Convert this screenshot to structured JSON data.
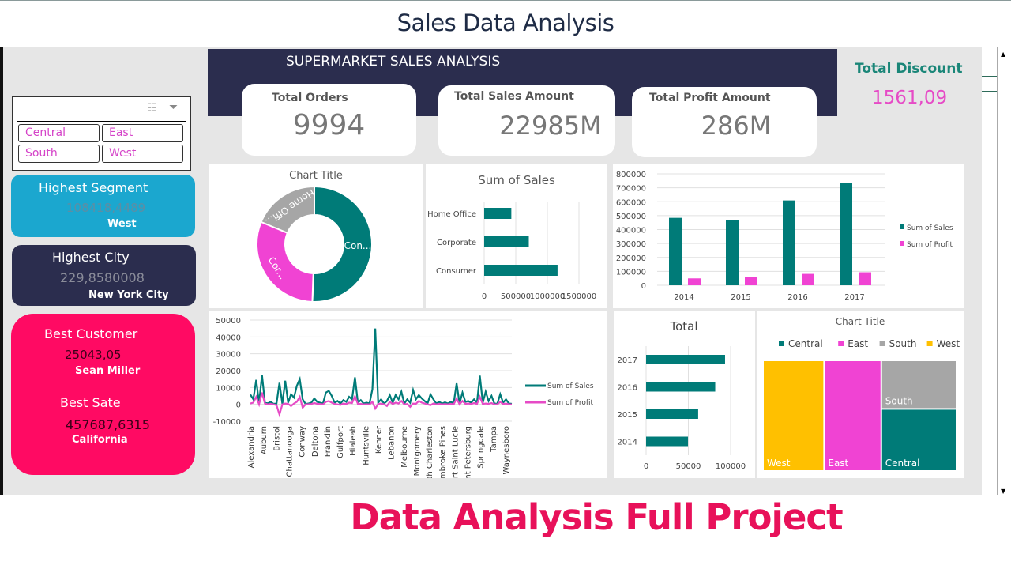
{
  "header": {
    "title": "Sales Data Analysis"
  },
  "footer": {
    "title": "Data Analysis Full Project"
  },
  "dashboard": {
    "banner_title": "SUPERMARKET SALES ANALYSIS",
    "cards": [
      {
        "label": "Total Orders",
        "value": "9994"
      },
      {
        "label": "Total Sales Amount",
        "value": "22985M"
      },
      {
        "label": "Total Profit Amount",
        "value": "286M"
      }
    ],
    "total_discount": {
      "label": "Total Discount",
      "value": "1561,09"
    },
    "region_filter": {
      "items": [
        "Central",
        "East",
        "South",
        "West"
      ],
      "icons": [
        "multi-select-icon",
        "clear-filter-icon"
      ]
    },
    "highest_segment": {
      "label": "Highest Segment",
      "value": "108418,4489",
      "name": "West"
    },
    "highest_city": {
      "label": "Highest City",
      "value": "229,8580008",
      "name": "New York City"
    },
    "best_customer": {
      "label": "Best Customer",
      "value": "25043,05",
      "name": "Sean Miller"
    },
    "best_state": {
      "label": "Best Sate",
      "value": "457687,6315",
      "name": "California"
    }
  },
  "colors": {
    "navy": "#2b2d4e",
    "teal": "#007b78",
    "magenta": "#f043d3",
    "gray": "#a6a6a6",
    "gold": "#ffc000",
    "segment_blue": "#1ba7cf",
    "customer_pink": "#ff0a63"
  },
  "chart_data": [
    {
      "type": "pie",
      "donut": true,
      "title": "Chart Title",
      "categories": [
        "Consumer",
        "Corporate",
        "Home Office"
      ],
      "labels": [
        "Con...",
        "Cor...",
        "Home Offi..."
      ],
      "values": [
        1161401,
        706146,
        429653
      ],
      "colors": [
        "#007b78",
        "#f043d3",
        "#a6a6a6"
      ]
    },
    {
      "type": "bar",
      "orientation": "horizontal",
      "title": "Sum of Sales",
      "categories": [
        "Home Office",
        "Corporate",
        "Consumer"
      ],
      "values": [
        429653,
        706146,
        1161401
      ],
      "xticks": [
        "0",
        "500000",
        "1000000",
        "1500000"
      ],
      "xlim": [
        0,
        1500000
      ]
    },
    {
      "type": "bar",
      "categories": [
        "2014",
        "2015",
        "2016",
        "2017"
      ],
      "series": [
        {
          "name": "Sum of Sales",
          "values": [
            484247,
            470533,
            609206,
            733215
          ],
          "color": "#007b78"
        },
        {
          "name": "Sum of Profit",
          "values": [
            49544,
            61619,
            81795,
            93439
          ],
          "color": "#f043d3"
        }
      ],
      "ylim": [
        0,
        800000
      ],
      "yticks": [
        "0",
        "100000",
        "200000",
        "300000",
        "400000",
        "500000",
        "600000",
        "700000",
        "800000"
      ],
      "legend": "right"
    },
    {
      "type": "line",
      "tick_labels": [
        "Alexandria",
        "Auburn",
        "Bristol",
        "Chattanooga",
        "Conway",
        "Deltona",
        "Franklin",
        "Gulfport",
        "Hialeah",
        "Huntsville",
        "Kenner",
        "Lebanon",
        "Melbourne",
        "Montgomery",
        "North Charleston",
        "Pembroke Pines",
        "Port Saint Lucie",
        "Saint Petersburg",
        "Springdale",
        "Tampa",
        "Waynesboro"
      ],
      "ylim": [
        -10000,
        50000
      ],
      "yticks": [
        "-10000",
        "0",
        "10000",
        "20000",
        "30000",
        "40000",
        "50000"
      ],
      "legend": "right",
      "series": [
        {
          "name": "Sum of Sales",
          "color": "#007b78",
          "values": [
            5800,
            3000,
            14500,
            500,
            17500,
            1000,
            600,
            1500,
            300,
            500,
            12800,
            300,
            14000,
            1000,
            6000,
            4000,
            11000,
            15000,
            3000,
            200,
            500,
            1000,
            3500,
            1500,
            1000,
            500,
            7000,
            8000,
            5000,
            1000,
            2000,
            500,
            2500,
            1500,
            4500,
            3000,
            16000,
            1000,
            2500,
            500,
            1000,
            500,
            9000,
            45000,
            1000,
            3000,
            500,
            2000,
            5500,
            1000,
            5500,
            3000,
            7500,
            500,
            3000,
            1000,
            8500,
            3000,
            5500,
            3500,
            2000,
            500,
            6000,
            3000,
            500,
            1500,
            500,
            1200,
            500,
            1500,
            600,
            12500,
            500,
            7000,
            1500,
            2000,
            1000,
            3000,
            1000,
            17000,
            1000,
            7500,
            2000,
            5000,
            500,
            300,
            6000,
            1000,
            3000,
            500,
            300
          ]
        },
        {
          "name": "Sum of Profit",
          "color": "#e64bc6",
          "values": [
            500,
            1000,
            4500,
            0,
            7000,
            500,
            0,
            300,
            0,
            -500,
            -6000,
            0,
            500,
            300,
            -1000,
            500,
            1500,
            4500,
            -2000,
            0,
            100,
            200,
            800,
            300,
            200,
            0,
            1500,
            2000,
            1000,
            200,
            0,
            -300,
            500,
            200,
            1000,
            800,
            4800,
            200,
            300,
            0,
            100,
            0,
            1500,
            -2500,
            200,
            500,
            0,
            -1000,
            1500,
            200,
            1000,
            500,
            2000,
            0,
            200,
            -1500,
            500,
            300,
            2000,
            1000,
            500,
            0,
            -500,
            500,
            0,
            300,
            0,
            200,
            0,
            300,
            0,
            3500,
            0,
            2000,
            300,
            500,
            200,
            800,
            200,
            4500,
            200,
            500,
            300,
            800,
            0,
            0,
            1500,
            200,
            500,
            0,
            0
          ]
        }
      ]
    },
    {
      "type": "bar",
      "orientation": "horizontal",
      "title": "Total",
      "categories": [
        "2017",
        "2016",
        "2015",
        "2014"
      ],
      "values": [
        93439,
        81795,
        61619,
        49544
      ],
      "xticks": [
        "0",
        "50000",
        "100000"
      ],
      "xlim": [
        0,
        100000
      ]
    },
    {
      "type": "treemap",
      "title": "Chart Title",
      "legend": "top",
      "categories": [
        "Central",
        "East",
        "South",
        "West"
      ],
      "values": [
        501240,
        678781,
        391722,
        725458
      ],
      "colors": [
        "#007b78",
        "#f043d3",
        "#a6a6a6",
        "#ffc000"
      ]
    }
  ]
}
